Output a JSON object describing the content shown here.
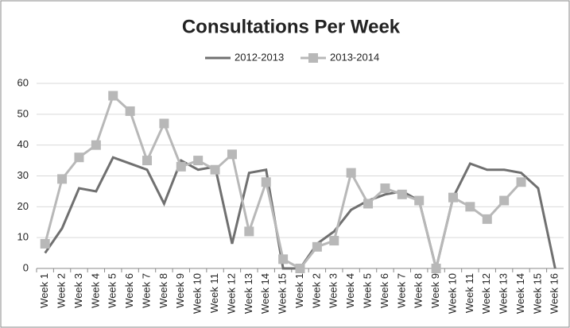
{
  "chart_data": {
    "type": "line",
    "title": "Consultations Per Week",
    "categories": [
      "Week 1",
      "Week 2",
      "Week 3",
      "Week 4",
      "Week 5",
      "Week 6",
      "Week 7",
      "Week 8",
      "Week 9",
      "Week 10",
      "Week 11",
      "Week 12",
      "Week 13",
      "Week 14",
      "Week 15",
      "Week 1",
      "Week 2",
      "Week 3",
      "Week 4",
      "Week 5",
      "Week 6",
      "Week 7",
      "Week 8",
      "Week 9",
      "Week 10",
      "Week 11",
      "Week 12",
      "Week 13",
      "Week 14",
      "Week 15",
      "Week 16"
    ],
    "series": [
      {
        "name": "2012-2013",
        "color": "#707070",
        "marker": false,
        "values": [
          5,
          13,
          26,
          25,
          36,
          34,
          32,
          21,
          35,
          32,
          33,
          8,
          31,
          32,
          0,
          0,
          8,
          12,
          19,
          22,
          24,
          25,
          22,
          0,
          23,
          34,
          32,
          32,
          31,
          26,
          0
        ]
      },
      {
        "name": "2013-2014",
        "color": "#b8b8b8",
        "marker": true,
        "values": [
          8,
          29,
          36,
          40,
          56,
          51,
          35,
          47,
          33,
          35,
          32,
          37,
          12,
          28,
          3,
          0,
          7,
          9,
          31,
          21,
          26,
          24,
          22,
          0,
          23,
          20,
          16,
          22,
          28,
          null,
          null
        ]
      }
    ],
    "ylim": [
      0,
      60
    ],
    "yticks": [
      0,
      10,
      20,
      30,
      40,
      50,
      60
    ],
    "grid": true,
    "legend": "top"
  }
}
